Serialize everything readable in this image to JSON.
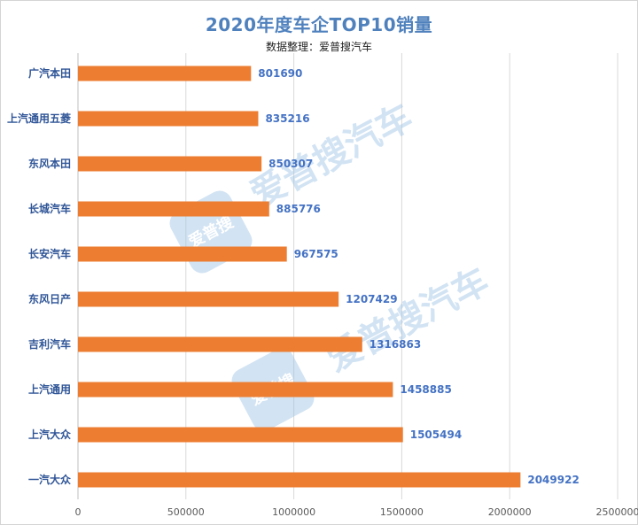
{
  "chart_data": {
    "type": "bar",
    "orientation": "horizontal",
    "title": "2020年度车企TOP10销量",
    "subtitle": "数据整理：爱普搜汽车",
    "categories": [
      "广汽本田",
      "上汽通用五菱",
      "东风本田",
      "长城汽车",
      "长安汽车",
      "东风日产",
      "吉利汽车",
      "上汽通用",
      "上汽大众",
      "一汽大众"
    ],
    "values": [
      801690,
      835216,
      850307,
      885776,
      967575,
      1207429,
      1316863,
      1458885,
      1505494,
      2049922
    ],
    "xlim": [
      0,
      2500000
    ],
    "x_ticks": [
      "0",
      "500000",
      "1000000",
      "1500000",
      "2000000",
      "2500000"
    ],
    "grid": true,
    "bar_color": "#ed7d31",
    "label_color": "#4472c4",
    "category_label_color": "#2f5597",
    "watermark": {
      "text_large": "爱普搜汽车",
      "badge": "爱普搜",
      "color": "#9dc3e6"
    }
  }
}
